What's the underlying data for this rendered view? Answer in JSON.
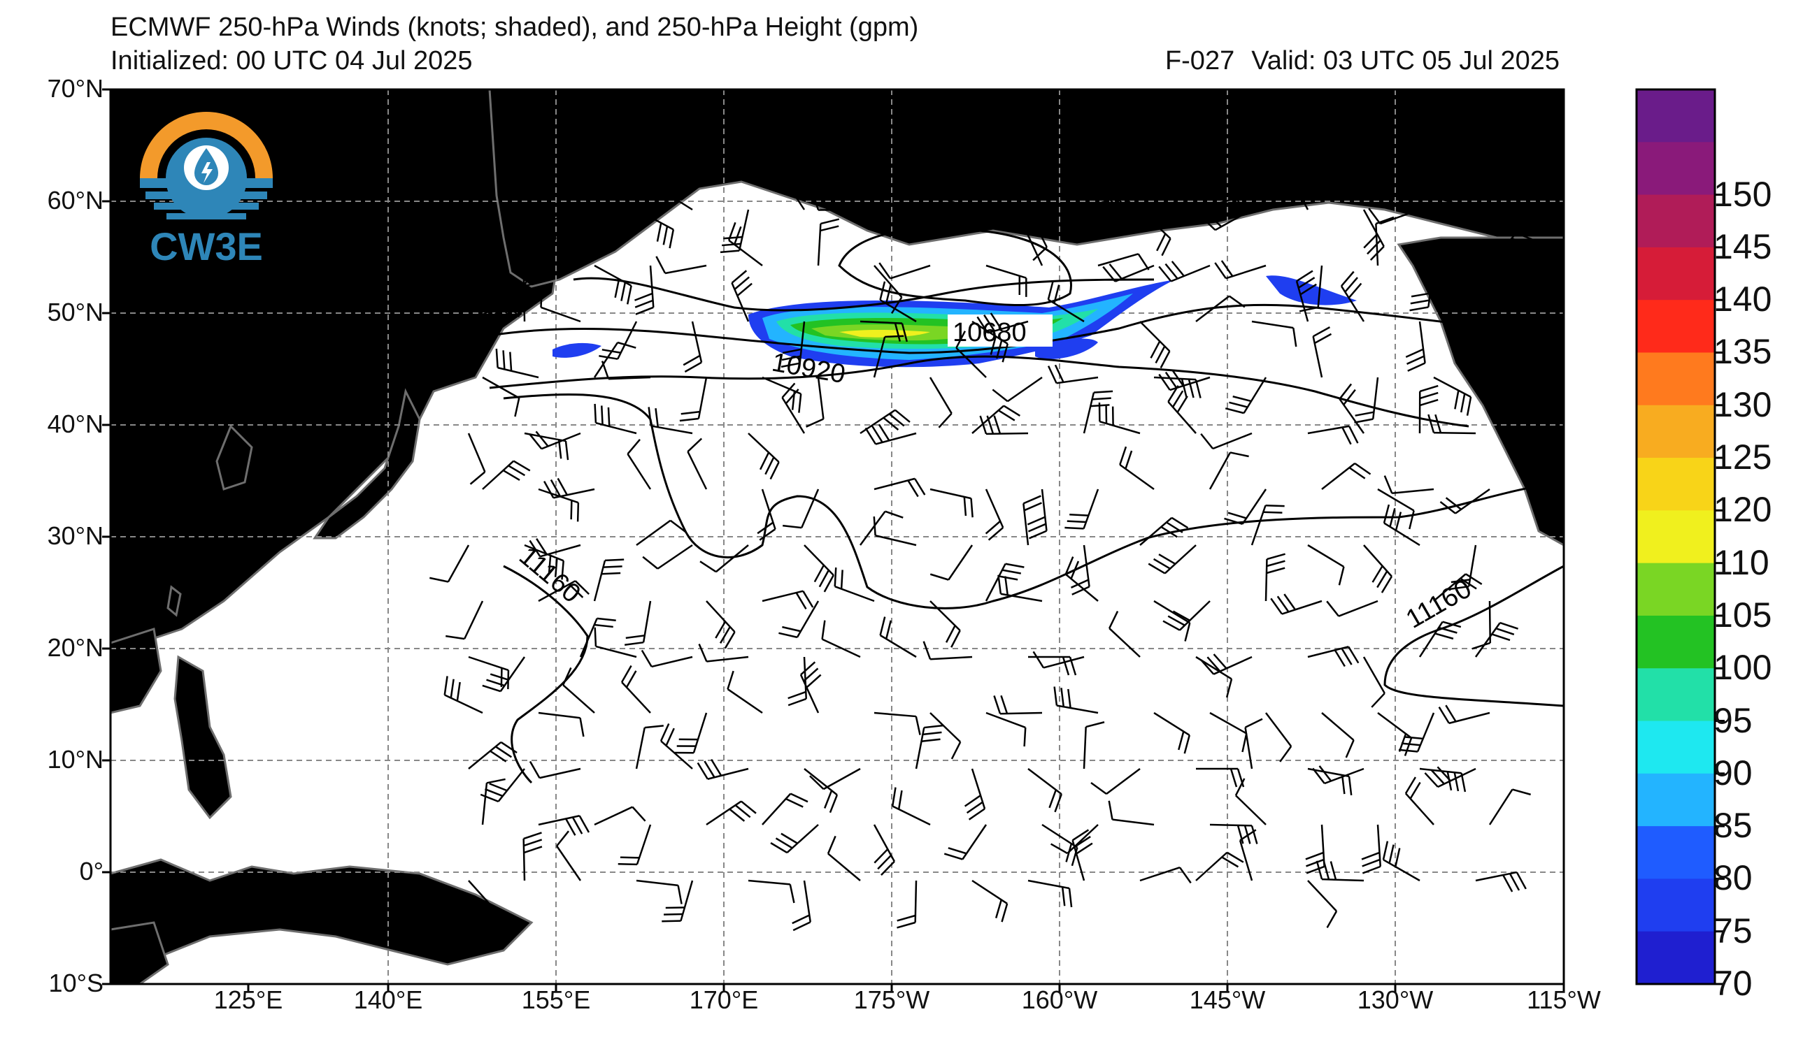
{
  "header": {
    "title": "ECMWF 250-hPa Winds (knots; shaded), and 250-hPa Height (gpm)",
    "initialized": "Initialized: 00 UTC 04 Jul 2025",
    "forecast": "F-027",
    "valid": "Valid: 03 UTC 05 Jul 2025"
  },
  "logo": {
    "text": "CW3E",
    "colors": {
      "sun": "#F39A2B",
      "water": "#2E86B8"
    }
  },
  "axes": {
    "lat_labels": [
      "70°N",
      "60°N",
      "50°N",
      "40°N",
      "30°N",
      "20°N",
      "10°N",
      "0°",
      "10°S"
    ],
    "lon_labels": [
      "125°E",
      "140°E",
      "155°E",
      "170°E",
      "175°W",
      "160°W",
      "145°W",
      "130°W",
      "115°W"
    ]
  },
  "contours": {
    "labels": [
      "10680",
      "10920",
      "11160",
      "11160"
    ]
  },
  "colorbar": {
    "levels": [
      "70",
      "75",
      "80",
      "85",
      "90",
      "95",
      "100",
      "105",
      "110",
      "120",
      "125",
      "130",
      "135",
      "140",
      "145",
      "150"
    ],
    "colors": [
      "#1f1fd0",
      "#1f3ef0",
      "#1f5cff",
      "#23b4ff",
      "#1ee8f0",
      "#22e0a8",
      "#23c223",
      "#7ad624",
      "#f0f01e",
      "#f8d418",
      "#f8ac20",
      "#ff7a1e",
      "#ff2a1a",
      "#d61c38",
      "#b01c58",
      "#8a1a7a",
      "#6a1c8a"
    ]
  },
  "colors": {
    "land": "#e0e0e0",
    "coast": "#6e6e6e",
    "grid": "#888888",
    "contour": "#000000"
  }
}
